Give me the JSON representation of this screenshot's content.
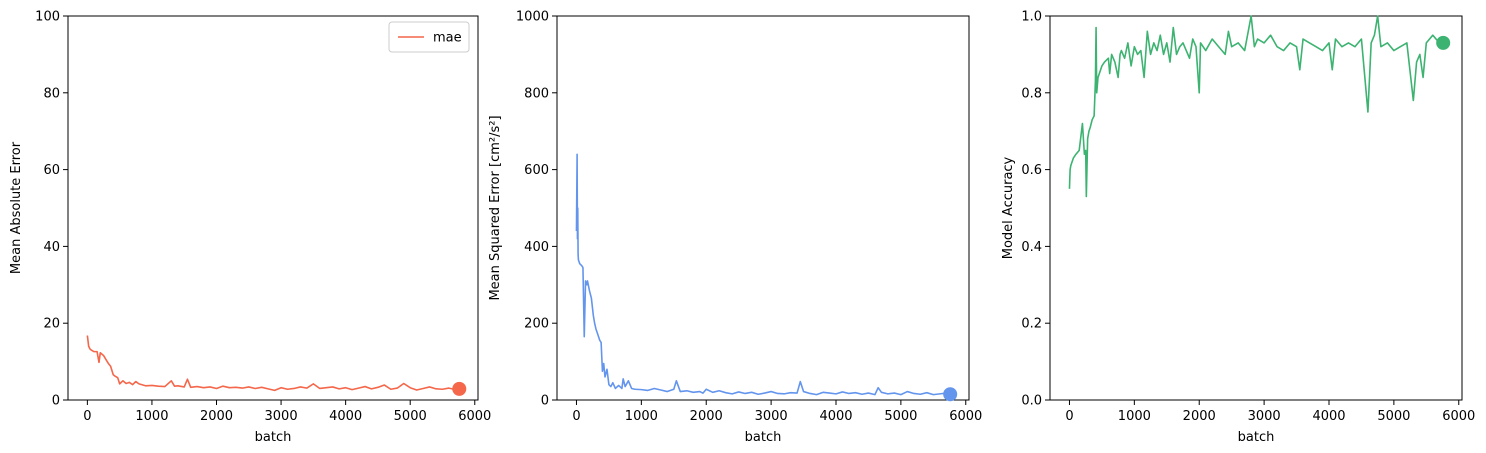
{
  "chart_data": [
    {
      "type": "line",
      "xlabel": "batch",
      "ylabel": "Mean Absolute Error",
      "xlim": [
        -300,
        6050
      ],
      "ylim": [
        0,
        100
      ],
      "xticks": [
        0,
        1000,
        2000,
        3000,
        4000,
        5000,
        6000
      ],
      "yticks": [
        0,
        20,
        40,
        60,
        80,
        100
      ],
      "grid": false,
      "legend": {
        "placement": "top-right",
        "entries": [
          "mae"
        ]
      },
      "color": "#f4674a",
      "series": [
        {
          "name": "mae",
          "x": [
            0,
            20,
            40,
            60,
            80,
            100,
            150,
            180,
            200,
            250,
            300,
            330,
            360,
            400,
            430,
            470,
            500,
            550,
            600,
            650,
            700,
            750,
            800,
            900,
            1000,
            1100,
            1200,
            1300,
            1350,
            1400,
            1500,
            1550,
            1600,
            1700,
            1800,
            1900,
            2000,
            2100,
            2200,
            2300,
            2400,
            2500,
            2600,
            2700,
            2800,
            2900,
            3000,
            3100,
            3200,
            3300,
            3400,
            3500,
            3600,
            3700,
            3800,
            3900,
            4000,
            4100,
            4200,
            4300,
            4400,
            4500,
            4600,
            4700,
            4800,
            4900,
            5000,
            5100,
            5200,
            5300,
            5400,
            5500,
            5600,
            5700,
            5760
          ],
          "values": [
            16.8,
            14,
            13.3,
            13,
            12.8,
            12.6,
            12.6,
            9.8,
            12.3,
            11.6,
            10.2,
            9.4,
            8.8,
            6.6,
            6.2,
            5.8,
            4.2,
            5.0,
            4.3,
            4.6,
            4.0,
            4.8,
            4.2,
            3.7,
            3.8,
            3.6,
            3.5,
            5.0,
            3.6,
            3.7,
            3.4,
            5.4,
            3.3,
            3.5,
            3.2,
            3.4,
            3.0,
            3.6,
            3.2,
            3.3,
            3.1,
            3.4,
            3.0,
            3.3,
            2.9,
            2.5,
            3.2,
            2.8,
            3.0,
            3.4,
            3.1,
            4.2,
            3.0,
            3.2,
            3.4,
            2.9,
            3.2,
            2.7,
            3.1,
            3.5,
            2.9,
            3.3,
            3.9,
            2.8,
            3.1,
            4.3,
            3.2,
            2.6,
            3.0,
            3.4,
            2.9,
            2.8,
            3.1,
            2.7,
            2.9
          ]
        }
      ]
    },
    {
      "type": "line",
      "xlabel": "batch",
      "ylabel": "Mean Squared Error [cm²/s²]",
      "xlim": [
        -300,
        6050
      ],
      "ylim": [
        0,
        1000
      ],
      "xticks": [
        0,
        1000,
        2000,
        3000,
        4000,
        5000,
        6000
      ],
      "yticks": [
        0,
        200,
        400,
        600,
        800,
        1000
      ],
      "grid": false,
      "color": "#6495ed",
      "series": [
        {
          "x": [
            0,
            10,
            15,
            20,
            25,
            30,
            50,
            80,
            100,
            120,
            140,
            160,
            170,
            200,
            230,
            260,
            280,
            300,
            320,
            340,
            360,
            380,
            400,
            420,
            440,
            470,
            500,
            530,
            560,
            600,
            650,
            700,
            720,
            750,
            800,
            850,
            900,
            1000,
            1100,
            1200,
            1300,
            1400,
            1500,
            1540,
            1600,
            1700,
            1800,
            1900,
            1950,
            2000,
            2100,
            2200,
            2300,
            2400,
            2500,
            2600,
            2700,
            2800,
            2900,
            3000,
            3100,
            3200,
            3300,
            3400,
            3450,
            3500,
            3600,
            3700,
            3800,
            3900,
            4000,
            4100,
            4200,
            4300,
            4400,
            4500,
            4600,
            4650,
            4700,
            4800,
            4900,
            5000,
            5100,
            5200,
            5300,
            5400,
            5500,
            5600,
            5700,
            5760
          ],
          "values": [
            440,
            640,
            420,
            500,
            380,
            365,
            355,
            350,
            345,
            165,
            310,
            300,
            310,
            285,
            265,
            220,
            200,
            185,
            175,
            165,
            155,
            150,
            75,
            95,
            60,
            80,
            40,
            35,
            45,
            30,
            38,
            30,
            55,
            35,
            50,
            30,
            28,
            27,
            25,
            30,
            26,
            22,
            28,
            50,
            22,
            24,
            20,
            22,
            18,
            28,
            20,
            24,
            19,
            16,
            21,
            17,
            20,
            15,
            18,
            22,
            17,
            16,
            19,
            18,
            48,
            22,
            17,
            14,
            20,
            18,
            16,
            21,
            17,
            19,
            15,
            18,
            14,
            32,
            20,
            16,
            18,
            14,
            22,
            17,
            15,
            19,
            14,
            16,
            18,
            15
          ]
        }
      ]
    },
    {
      "type": "line",
      "xlabel": "batch",
      "ylabel": "Model Accuracy",
      "xlim": [
        -300,
        6050
      ],
      "ylim": [
        0,
        1.0
      ],
      "xticks": [
        0,
        1000,
        2000,
        3000,
        4000,
        5000,
        6000
      ],
      "yticks": [
        0.0,
        0.2,
        0.4,
        0.6,
        0.8,
        1.0
      ],
      "grid": false,
      "color": "#3cb371",
      "series": [
        {
          "x": [
            0,
            10,
            20,
            40,
            60,
            100,
            150,
            200,
            230,
            250,
            260,
            280,
            300,
            320,
            350,
            380,
            400,
            410,
            420,
            440,
            460,
            500,
            540,
            600,
            620,
            650,
            700,
            750,
            780,
            800,
            850,
            900,
            950,
            1000,
            1050,
            1100,
            1150,
            1200,
            1250,
            1300,
            1350,
            1400,
            1450,
            1500,
            1550,
            1600,
            1650,
            1700,
            1750,
            1800,
            1850,
            1900,
            1950,
            2000,
            2020,
            2100,
            2200,
            2300,
            2400,
            2450,
            2500,
            2600,
            2700,
            2800,
            2850,
            2900,
            3000,
            3100,
            3200,
            3300,
            3400,
            3500,
            3550,
            3600,
            3700,
            3800,
            3900,
            4000,
            4050,
            4100,
            4200,
            4300,
            4400,
            4500,
            4600,
            4650,
            4700,
            4750,
            4800,
            4900,
            5000,
            5100,
            5200,
            5300,
            5350,
            5400,
            5450,
            5500,
            5600,
            5700,
            5760
          ],
          "values": [
            0.55,
            0.6,
            0.61,
            0.62,
            0.63,
            0.64,
            0.65,
            0.72,
            0.64,
            0.65,
            0.53,
            0.68,
            0.7,
            0.71,
            0.73,
            0.74,
            0.83,
            0.97,
            0.8,
            0.84,
            0.85,
            0.87,
            0.88,
            0.89,
            0.85,
            0.9,
            0.88,
            0.84,
            0.9,
            0.91,
            0.89,
            0.93,
            0.87,
            0.92,
            0.9,
            0.91,
            0.84,
            0.96,
            0.9,
            0.93,
            0.91,
            0.95,
            0.9,
            0.93,
            0.88,
            0.97,
            0.9,
            0.92,
            0.93,
            0.91,
            0.89,
            0.94,
            0.92,
            0.8,
            0.93,
            0.91,
            0.94,
            0.92,
            0.9,
            0.96,
            0.92,
            0.93,
            0.91,
            1.0,
            0.92,
            0.94,
            0.93,
            0.95,
            0.92,
            0.91,
            0.93,
            0.92,
            0.86,
            0.94,
            0.93,
            0.92,
            0.91,
            0.93,
            0.86,
            0.94,
            0.92,
            0.93,
            0.92,
            0.94,
            0.75,
            0.93,
            0.95,
            1.0,
            0.92,
            0.93,
            0.91,
            0.92,
            0.93,
            0.78,
            0.88,
            0.9,
            0.84,
            0.93,
            0.95,
            0.93,
            0.93
          ]
        }
      ]
    }
  ]
}
